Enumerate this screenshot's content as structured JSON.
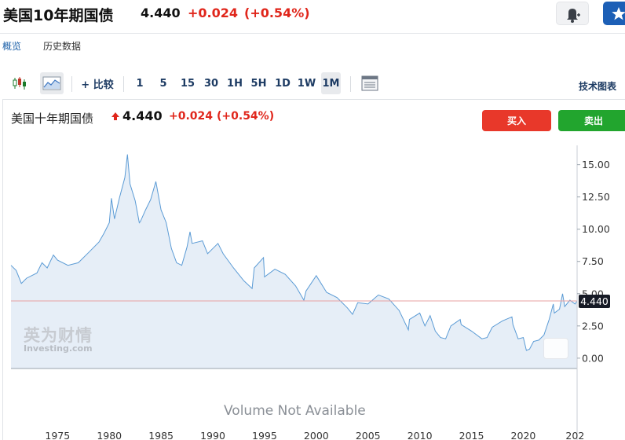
{
  "quote": {
    "title": "美国10年期国债",
    "price": "4.440",
    "change": "+0.024",
    "change_pct": "(+0.54%)"
  },
  "icons": {
    "alert": "bell-plus-icon",
    "watchlist": "star-icon",
    "candles": "candlestick-icon",
    "area": "area-chart-icon",
    "compare": "plus-icon",
    "layout": "layout-icon",
    "up_arrow": "arrow-up-icon"
  },
  "tabs": [
    {
      "label": "概览"
    },
    {
      "label": "历史数据"
    }
  ],
  "toolbar": {
    "compare_label": "+ 比较",
    "intervals": [
      "1",
      "5",
      "15",
      "30",
      "1H",
      "5H",
      "1D",
      "1W",
      "1M"
    ],
    "selected_interval": "1M",
    "tech_chart_label": "技术图表"
  },
  "legend": {
    "title": "美国十年期国债",
    "price": "4.440",
    "change": "+0.024",
    "change_pct": "(+0.54%)"
  },
  "actions": {
    "buy_label": "买入",
    "sell_label": "卖出"
  },
  "watermark": {
    "cn": "英为财情",
    "en": "Investing.com"
  },
  "volume_note": "Volume Not Available",
  "colors": {
    "up": "#e0261b",
    "line": "#5b9bd5",
    "area": "#e6eef7",
    "buy": "#e8382a",
    "sell": "#22a52e",
    "price_line": "#e8a0a0"
  },
  "chart_data": {
    "type": "area",
    "title": "美国十年期国债",
    "x_label": "",
    "y_label": "",
    "x_ticks": [
      "1975",
      "1980",
      "1985",
      "1990",
      "1995",
      "2000",
      "2005",
      "2010",
      "2015",
      "2020",
      "202"
    ],
    "y_ticks": [
      "0.00",
      "2.50",
      "5.00",
      "7.50",
      "10.00",
      "12.50",
      "15.00"
    ],
    "ylim": [
      -0.8,
      16.5
    ],
    "xlim": [
      1970.5,
      2025.2
    ],
    "last_value": 4.44,
    "last_value_label": "4.440",
    "series": [
      {
        "x": [
          1970.5,
          1971,
          1971.5,
          1972,
          1973,
          1973.5,
          1974,
          1974.6,
          1975,
          1976,
          1977,
          1978,
          1979,
          1979.5,
          1980,
          1980.2,
          1980.5,
          1981,
          1981.5,
          1981.75,
          1982,
          1982.5,
          1982.9,
          1983,
          1983.5,
          1984,
          1984.5,
          1985,
          1985.5,
          1986,
          1986.5,
          1987,
          1987.5,
          1987.8,
          1988,
          1989,
          1989.5,
          1990,
          1990.5,
          1991,
          1992,
          1993,
          1993.8,
          1994,
          1994.9,
          1995,
          1996,
          1997,
          1998,
          1998.8,
          1999,
          2000,
          2001,
          2002,
          2003,
          2003.5,
          2004,
          2005,
          2006,
          2007,
          2008,
          2008.9,
          2009,
          2010,
          2010.5,
          2011,
          2011.5,
          2012,
          2012.5,
          2013,
          2013.9,
          2014,
          2015,
          2016,
          2016.5,
          2017,
          2018,
          2018.9,
          2019,
          2019.5,
          2020,
          2020.3,
          2020.6,
          2021,
          2021.5,
          2022,
          2022.5,
          2022.9,
          2023,
          2023.5,
          2023.8,
          2024,
          2024.5,
          2025,
          2025.2
        ],
        "y": [
          7.2,
          6.8,
          5.8,
          6.2,
          6.6,
          7.4,
          7.0,
          8.0,
          7.6,
          7.2,
          7.4,
          8.2,
          9.0,
          9.7,
          10.5,
          12.4,
          10.8,
          12.5,
          14.0,
          15.8,
          13.5,
          12.2,
          10.5,
          10.6,
          11.5,
          12.3,
          13.7,
          11.5,
          10.5,
          8.5,
          7.4,
          7.2,
          8.6,
          9.8,
          8.9,
          9.1,
          8.1,
          8.5,
          8.9,
          8.1,
          7.0,
          6.0,
          5.4,
          7.0,
          7.8,
          6.3,
          6.9,
          6.5,
          5.6,
          4.5,
          5.2,
          6.4,
          5.1,
          4.7,
          3.9,
          3.4,
          4.3,
          4.2,
          4.9,
          4.6,
          3.7,
          2.2,
          3.0,
          3.5,
          2.5,
          3.3,
          2.1,
          1.6,
          1.5,
          2.5,
          3.0,
          2.6,
          2.1,
          1.5,
          1.6,
          2.4,
          2.9,
          3.2,
          2.6,
          1.5,
          1.6,
          0.6,
          0.7,
          1.3,
          1.4,
          1.8,
          3.0,
          4.2,
          3.5,
          3.8,
          5.0,
          4.0,
          4.5,
          4.2,
          4.44
        ]
      }
    ]
  }
}
